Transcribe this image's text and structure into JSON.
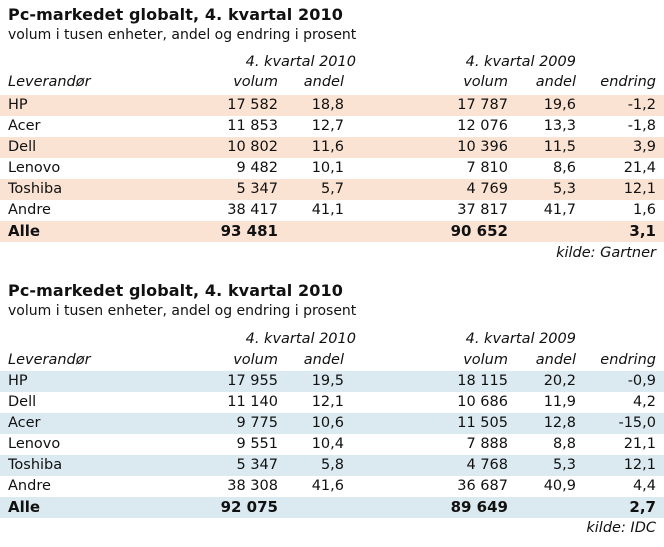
{
  "tables": [
    {
      "title": "Pc-markedet globalt, 4. kvartal 2010",
      "subtitle": "volum i tusen enheter, andel og endring i prosent",
      "group_2010": "4. kvartal 2010",
      "group_2009": "4. kvartal 2009",
      "col_vendor": "Leverandør",
      "col_volum_2010": "volum",
      "col_andel_2010": "andel",
      "col_volum_2009": "volum",
      "col_andel_2009": "andel",
      "col_endring": "endring",
      "stripe_color": "#fbe3d4",
      "rows": [
        {
          "name": "HP",
          "v10": "17 582",
          "a10": "18,8",
          "v09": "17 787",
          "a09": "19,6",
          "end": "-1,2"
        },
        {
          "name": "Acer",
          "v10": "11 853",
          "a10": "12,7",
          "v09": "12 076",
          "a09": "13,3",
          "end": "-1,8"
        },
        {
          "name": "Dell",
          "v10": "10 802",
          "a10": "11,6",
          "v09": "10 396",
          "a09": "11,5",
          "end": "3,9"
        },
        {
          "name": "Lenovo",
          "v10": "9 482",
          "a10": "10,1",
          "v09": "7 810",
          "a09": "8,6",
          "end": "21,4"
        },
        {
          "name": "Toshiba",
          "v10": "5 347",
          "a10": "5,7",
          "v09": "4 769",
          "a09": "5,3",
          "end": "12,1"
        },
        {
          "name": "Andre",
          "v10": "38 417",
          "a10": "41,1",
          "v09": "37 817",
          "a09": "41,7",
          "end": "1,6"
        }
      ],
      "total": {
        "name": "Alle",
        "v10": "93 481",
        "a10": "",
        "v09": "90 652",
        "a09": "",
        "end": "3,1"
      },
      "source": "kilde: Gartner"
    },
    {
      "title": "Pc-markedet globalt, 4. kvartal 2010",
      "subtitle": "volum i tusen enheter, andel og endring i prosent",
      "group_2010": "4. kvartal 2010",
      "group_2009": "4. kvartal 2009",
      "col_vendor": "Leverandør",
      "col_volum_2010": "volum",
      "col_andel_2010": "andel",
      "col_volum_2009": "volum",
      "col_andel_2009": "andel",
      "col_endring": "endring",
      "stripe_color": "#dbeaf1",
      "rows": [
        {
          "name": "HP",
          "v10": "17 955",
          "a10": "19,5",
          "v09": "18 115",
          "a09": "20,2",
          "end": "-0,9"
        },
        {
          "name": "Dell",
          "v10": "11 140",
          "a10": "12,1",
          "v09": "10 686",
          "a09": "11,9",
          "end": "4,2"
        },
        {
          "name": "Acer",
          "v10": "9 775",
          "a10": "10,6",
          "v09": "11 505",
          "a09": "12,8",
          "end": "-15,0"
        },
        {
          "name": "Lenovo",
          "v10": "9 551",
          "a10": "10,4",
          "v09": "7 888",
          "a09": "8,8",
          "end": "21,1"
        },
        {
          "name": "Toshiba",
          "v10": "5 347",
          "a10": "5,8",
          "v09": "4 768",
          "a09": "5,3",
          "end": "12,1"
        },
        {
          "name": "Andre",
          "v10": "38 308",
          "a10": "41,6",
          "v09": "36 687",
          "a09": "40,9",
          "end": "4,4"
        }
      ],
      "total": {
        "name": "Alle",
        "v10": "92 075",
        "a10": "",
        "v09": "89 649",
        "a09": "",
        "end": "2,7"
      },
      "source": "kilde: IDC"
    }
  ]
}
